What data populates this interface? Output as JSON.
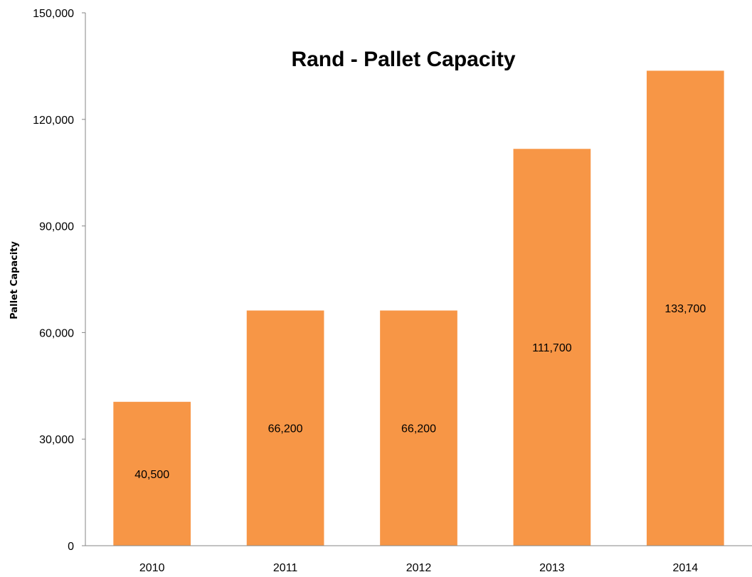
{
  "chart_data": {
    "type": "bar",
    "title": "Rand - Pallet Capacity",
    "xlabel": "",
    "ylabel": "Pallet Capacity",
    "categories": [
      "2010",
      "2011",
      "2012",
      "2013",
      "2014"
    ],
    "values": [
      40500,
      66200,
      66200,
      111700,
      133700
    ],
    "data_labels": [
      "40,500",
      "66,200",
      "66,200",
      "111,700",
      "133,700"
    ],
    "ylim": [
      0,
      150000
    ],
    "yticks": [
      0,
      30000,
      60000,
      90000,
      120000,
      150000
    ],
    "ytick_labels": [
      "0",
      "30,000",
      "60,000",
      "90,000",
      "120,000",
      "150,000"
    ],
    "grid": false,
    "legend": "none",
    "bar_color": "#f79646"
  }
}
